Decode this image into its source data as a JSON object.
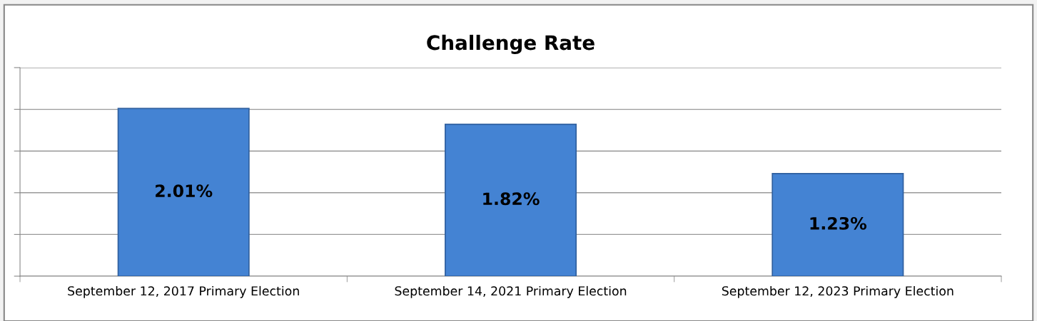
{
  "chart_data": {
    "type": "bar",
    "title": "Challenge Rate",
    "categories": [
      "September 12, 2017 Primary Election",
      "September 14, 2021 Primary Election",
      "September 12, 2023 Primary Election"
    ],
    "values": [
      2.01,
      1.82,
      1.23
    ],
    "value_labels": [
      "2.01%",
      "1.82%",
      "1.23%"
    ],
    "color": "#4483d3",
    "ylim": [
      0,
      2.5
    ],
    "yticks": [
      {
        "value": 0,
        "label": null
      },
      {
        "value": 0.5,
        "label": null
      },
      {
        "value": 1,
        "label": null
      },
      {
        "value": 1.5,
        "label": null
      },
      {
        "value": 2,
        "label": null
      },
      {
        "value": 2.5,
        "label": null
      }
    ],
    "grid": "y",
    "legend": false
  }
}
